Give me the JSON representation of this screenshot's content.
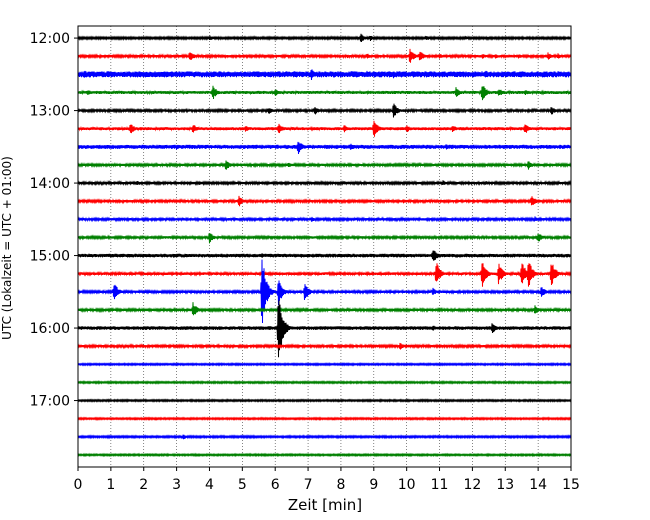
{
  "chart_data": {
    "type": "line",
    "title": "",
    "xlabel": "Zeit  [min]",
    "ylabel": "UTC (Lokalzeit = UTC + 01:00)",
    "xlim": [
      0,
      15
    ],
    "x_ticks": [
      "0",
      "1",
      "2",
      "3",
      "4",
      "5",
      "6",
      "7",
      "8",
      "9",
      "10",
      "11",
      "12",
      "13",
      "14",
      "15"
    ],
    "y_ticks": [
      "12:00",
      "13:00",
      "14:00",
      "15:00",
      "16:00",
      "17:00"
    ],
    "y_range_hours": [
      "11:50",
      "17:55"
    ],
    "vertical_grid": "dotted, every minute",
    "series_colors": [
      "#000000",
      "#ff0000",
      "#0000ff",
      "#008000"
    ],
    "trace_interval_minutes": 15,
    "traces": [
      {
        "start": "12:00",
        "activity": [
          [
            0.0,
            1.0
          ],
          [
            1.0,
            1.0
          ],
          [
            4.0,
            3.0
          ],
          [
            8.6,
            5.0
          ],
          [
            8.9,
            3.0
          ],
          [
            10.6,
            3.0
          ],
          [
            11.8,
            2.0
          ]
        ]
      },
      {
        "start": "12:15",
        "activity": [
          [
            0.0,
            1.2
          ],
          [
            3.4,
            6.0
          ],
          [
            8.2,
            2.0
          ],
          [
            8.8,
            3.0
          ],
          [
            10.1,
            8.0
          ],
          [
            10.4,
            6.0
          ],
          [
            11.0,
            3.0
          ],
          [
            12.3,
            3.0
          ],
          [
            12.7,
            2.5
          ],
          [
            13.4,
            2.5
          ],
          [
            14.3,
            4.0
          ],
          [
            14.6,
            3.0
          ]
        ]
      },
      {
        "start": "12:30",
        "activity": [
          [
            0.0,
            3.0
          ],
          [
            0.2,
            4.0
          ],
          [
            0.9,
            4.0
          ],
          [
            2.2,
            3.0
          ],
          [
            4.1,
            3.0
          ],
          [
            7.1,
            6.0
          ],
          [
            8.8,
            4.0
          ],
          [
            9.6,
            4.0
          ],
          [
            10.2,
            3.5
          ],
          [
            11.6,
            3.0
          ],
          [
            12.4,
            4.0
          ],
          [
            14.8,
            3.0
          ]
        ]
      },
      {
        "start": "12:45",
        "activity": [
          [
            0.0,
            1.5
          ],
          [
            0.3,
            3.0
          ],
          [
            4.1,
            8.0
          ],
          [
            6.0,
            4.0
          ],
          [
            11.5,
            6.0
          ],
          [
            12.3,
            10.0
          ],
          [
            12.8,
            5.0
          ],
          [
            13.6,
            3.0
          ]
        ]
      },
      {
        "start": "13:00",
        "activity": [
          [
            0.0,
            1.2
          ],
          [
            5.8,
            4.0
          ],
          [
            7.2,
            5.0
          ],
          [
            9.6,
            8.0
          ],
          [
            14.4,
            5.0
          ]
        ]
      },
      {
        "start": "13:15",
        "activity": [
          [
            0.0,
            1.5
          ],
          [
            1.6,
            6.0
          ],
          [
            3.5,
            5.0
          ],
          [
            5.1,
            4.0
          ],
          [
            6.1,
            6.0
          ],
          [
            8.1,
            4.0
          ],
          [
            9.0,
            10.0
          ],
          [
            10.0,
            4.0
          ],
          [
            11.4,
            4.0
          ],
          [
            13.6,
            6.0
          ]
        ]
      },
      {
        "start": "13:30",
        "activity": [
          [
            0.0,
            2.0
          ],
          [
            0.9,
            2.0
          ],
          [
            3.0,
            3.0
          ],
          [
            6.7,
            8.0
          ],
          [
            8.3,
            4.0
          ],
          [
            9.5,
            2.0
          ],
          [
            11.2,
            3.0
          ]
        ]
      },
      {
        "start": "13:45",
        "activity": [
          [
            0.0,
            1.2
          ],
          [
            4.5,
            6.0
          ],
          [
            6.4,
            3.0
          ],
          [
            13.7,
            5.0
          ]
        ]
      },
      {
        "start": "14:00",
        "activity": [
          [
            0.0,
            1.2
          ],
          [
            1.8,
            3.0
          ],
          [
            3.7,
            2.0
          ],
          [
            8.1,
            2.0
          ],
          [
            11.1,
            3.0
          ],
          [
            12.4,
            2.5
          ]
        ]
      },
      {
        "start": "14:15",
        "activity": [
          [
            0.0,
            1.2
          ],
          [
            4.9,
            6.0
          ],
          [
            9.9,
            3.0
          ],
          [
            14.0,
            2.5
          ],
          [
            13.8,
            6.0
          ]
        ]
      },
      {
        "start": "14:30",
        "activity": [
          [
            0.0,
            1.2
          ],
          [
            3.2,
            2.0
          ],
          [
            7.1,
            3.0
          ],
          [
            13.9,
            3.0
          ]
        ]
      },
      {
        "start": "14:45",
        "activity": [
          [
            0.0,
            1.2
          ],
          [
            4.0,
            6.0
          ],
          [
            14.0,
            6.0
          ]
        ]
      },
      {
        "start": "15:00",
        "activity": [
          [
            0.0,
            1.8
          ],
          [
            2.9,
            2.5
          ],
          [
            5.6,
            2.5
          ],
          [
            6.8,
            2.5
          ],
          [
            10.8,
            8.0
          ]
        ]
      },
      {
        "start": "15:15",
        "activity": [
          [
            0.0,
            1.3
          ],
          [
            10.9,
            13.0
          ],
          [
            12.3,
            14.0
          ],
          [
            12.8,
            12.0
          ],
          [
            13.5,
            15.0
          ],
          [
            13.7,
            16.0
          ],
          [
            14.4,
            14.0
          ]
        ]
      },
      {
        "start": "15:30",
        "activity": [
          [
            0.0,
            1.2
          ],
          [
            1.1,
            10.0
          ],
          [
            5.6,
            40.0
          ],
          [
            6.1,
            14.0
          ],
          [
            6.9,
            10.0
          ],
          [
            10.8,
            4.0
          ],
          [
            14.1,
            6.0
          ]
        ]
      },
      {
        "start": "15:45",
        "activity": [
          [
            0.0,
            1.2
          ],
          [
            3.5,
            8.0
          ],
          [
            13.9,
            5.0
          ]
        ]
      },
      {
        "start": "16:00",
        "activity": [
          [
            0.0,
            1.8
          ],
          [
            1.9,
            2.0
          ],
          [
            6.1,
            40.0
          ],
          [
            10.8,
            3.0
          ],
          [
            12.6,
            6.0
          ]
        ]
      },
      {
        "start": "16:15",
        "activity": [
          [
            0.0,
            1.2
          ],
          [
            9.8,
            4.0
          ]
        ]
      },
      {
        "start": "16:30",
        "activity": [
          [
            0.0,
            0.8
          ]
        ]
      },
      {
        "start": "16:45",
        "activity": [
          [
            0.0,
            0.8
          ]
        ]
      },
      {
        "start": "17:00",
        "activity": [
          [
            0.0,
            0.8
          ]
        ]
      },
      {
        "start": "17:15",
        "activity": [
          [
            0.0,
            0.8
          ]
        ]
      },
      {
        "start": "17:30",
        "activity": [
          [
            0.0,
            0.9
          ],
          [
            3.2,
            3.0
          ]
        ]
      },
      {
        "start": "17:45",
        "activity": [
          [
            0.0,
            0.8
          ]
        ]
      }
    ]
  }
}
